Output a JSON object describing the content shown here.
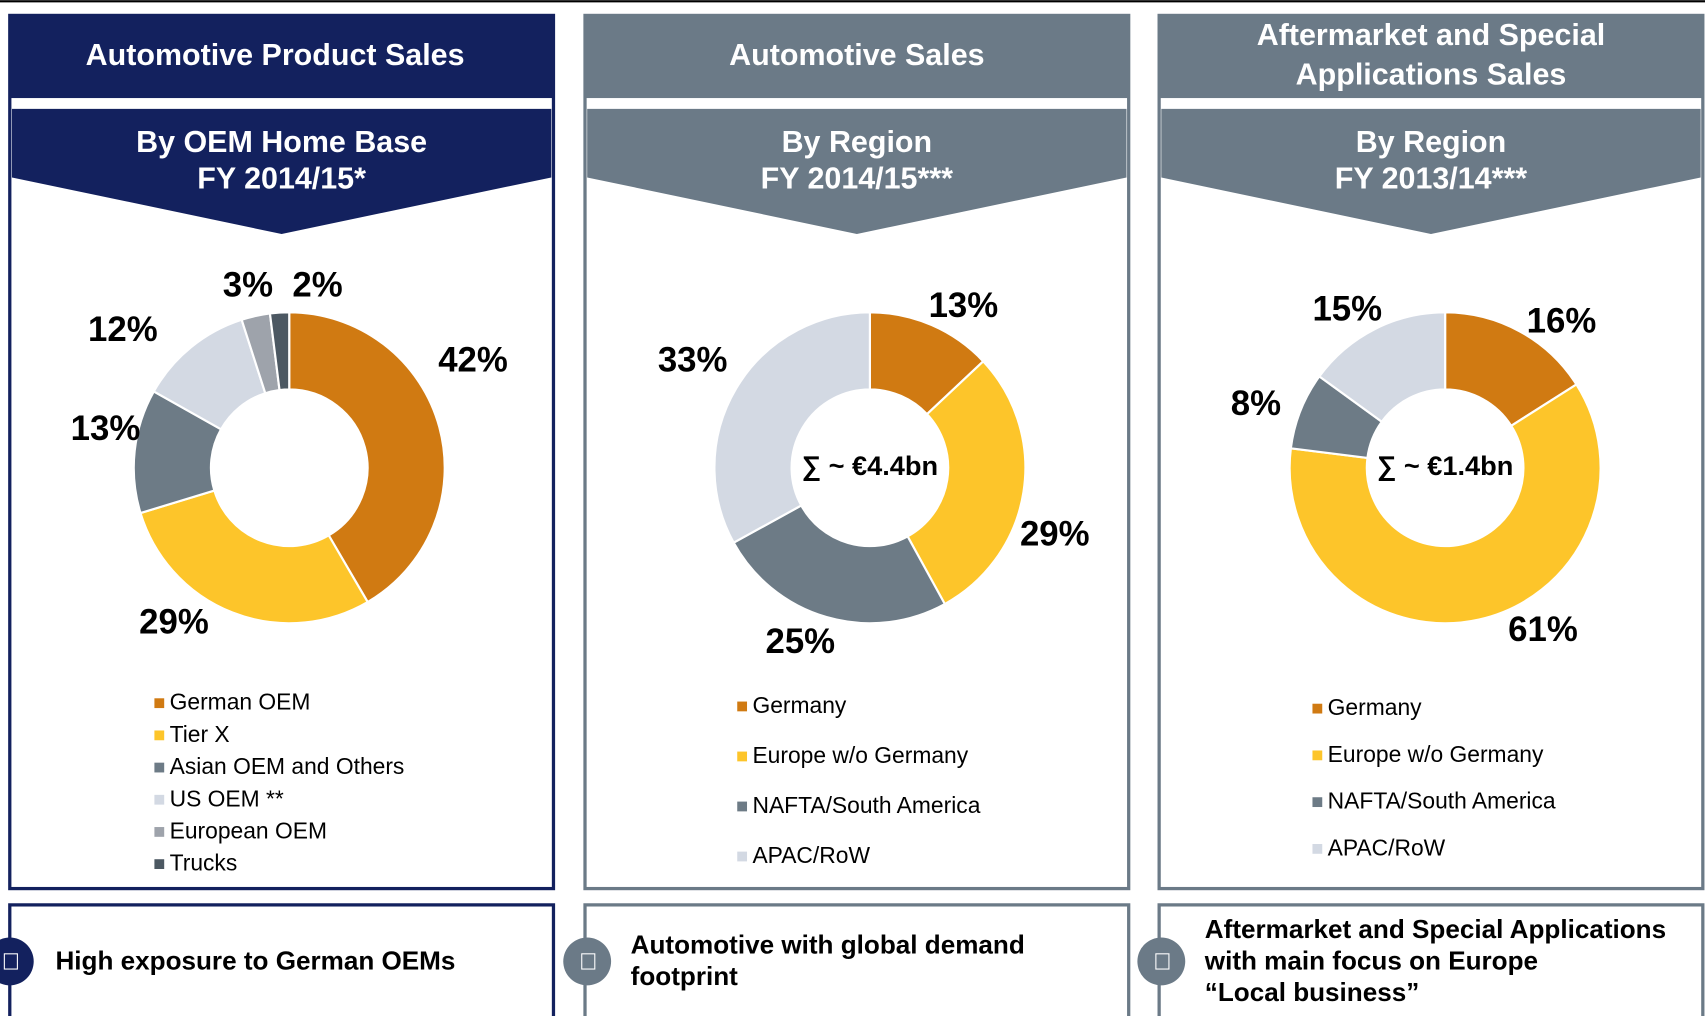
{
  "chart_data": [
    {
      "type": "pie",
      "title": [
        "Automotive Product Sales"
      ],
      "subtitle": [
        "By OEM Home Base",
        "FY 2014/15*"
      ],
      "categories": [
        "German OEM",
        "Tier X",
        "Asian OEM and Others",
        "US OEM **",
        "European OEM",
        "Trucks"
      ],
      "values": [
        42,
        29,
        13,
        12,
        3,
        2
      ],
      "value_labels": [
        "42%",
        "29%",
        "13%",
        "12%",
        "3%",
        "2%"
      ],
      "colors": [
        "#d07a12",
        "#fdc52a",
        "#6d7b86",
        "#d3d9e3",
        "#9ea3ab",
        "#4c5862"
      ],
      "header_color": "#13215e"
    },
    {
      "type": "pie",
      "title": [
        "Automotive Sales"
      ],
      "subtitle": [
        "By Region",
        "FY 2014/15***"
      ],
      "center_label": "∑ ~ €4.4bn",
      "categories": [
        "Germany",
        "Europe w/o Germany",
        "NAFTA/South America",
        "APAC/RoW"
      ],
      "values": [
        13,
        29,
        25,
        33
      ],
      "value_labels": [
        "13%",
        "29%",
        "25%",
        "33%"
      ],
      "colors": [
        "#d07a12",
        "#fdc52a",
        "#6d7b86",
        "#d3d9e3"
      ],
      "header_color": "#6b7a87"
    },
    {
      "type": "pie",
      "title": [
        "Aftermarket and Special",
        "Applications Sales"
      ],
      "subtitle": [
        "By Region",
        "FY 2013/14***"
      ],
      "center_label": "∑ ~ €1.4bn",
      "categories": [
        "Germany",
        "Europe w/o Germany",
        "NAFTA/South America",
        "APAC/RoW"
      ],
      "values": [
        16,
        61,
        8,
        15
      ],
      "value_labels": [
        "16%",
        "61%",
        "8%",
        "15%"
      ],
      "colors": [
        "#d07a12",
        "#fdc52a",
        "#6d7b86",
        "#d3d9e3"
      ],
      "header_color": "#6b7a87"
    }
  ],
  "notes": [
    [
      "High exposure to German OEMs"
    ],
    [
      "Automotive with global demand",
      "footprint"
    ],
    [
      "Aftermarket and Special Applications",
      "with main focus on Europe",
      "“Local business”"
    ]
  ]
}
